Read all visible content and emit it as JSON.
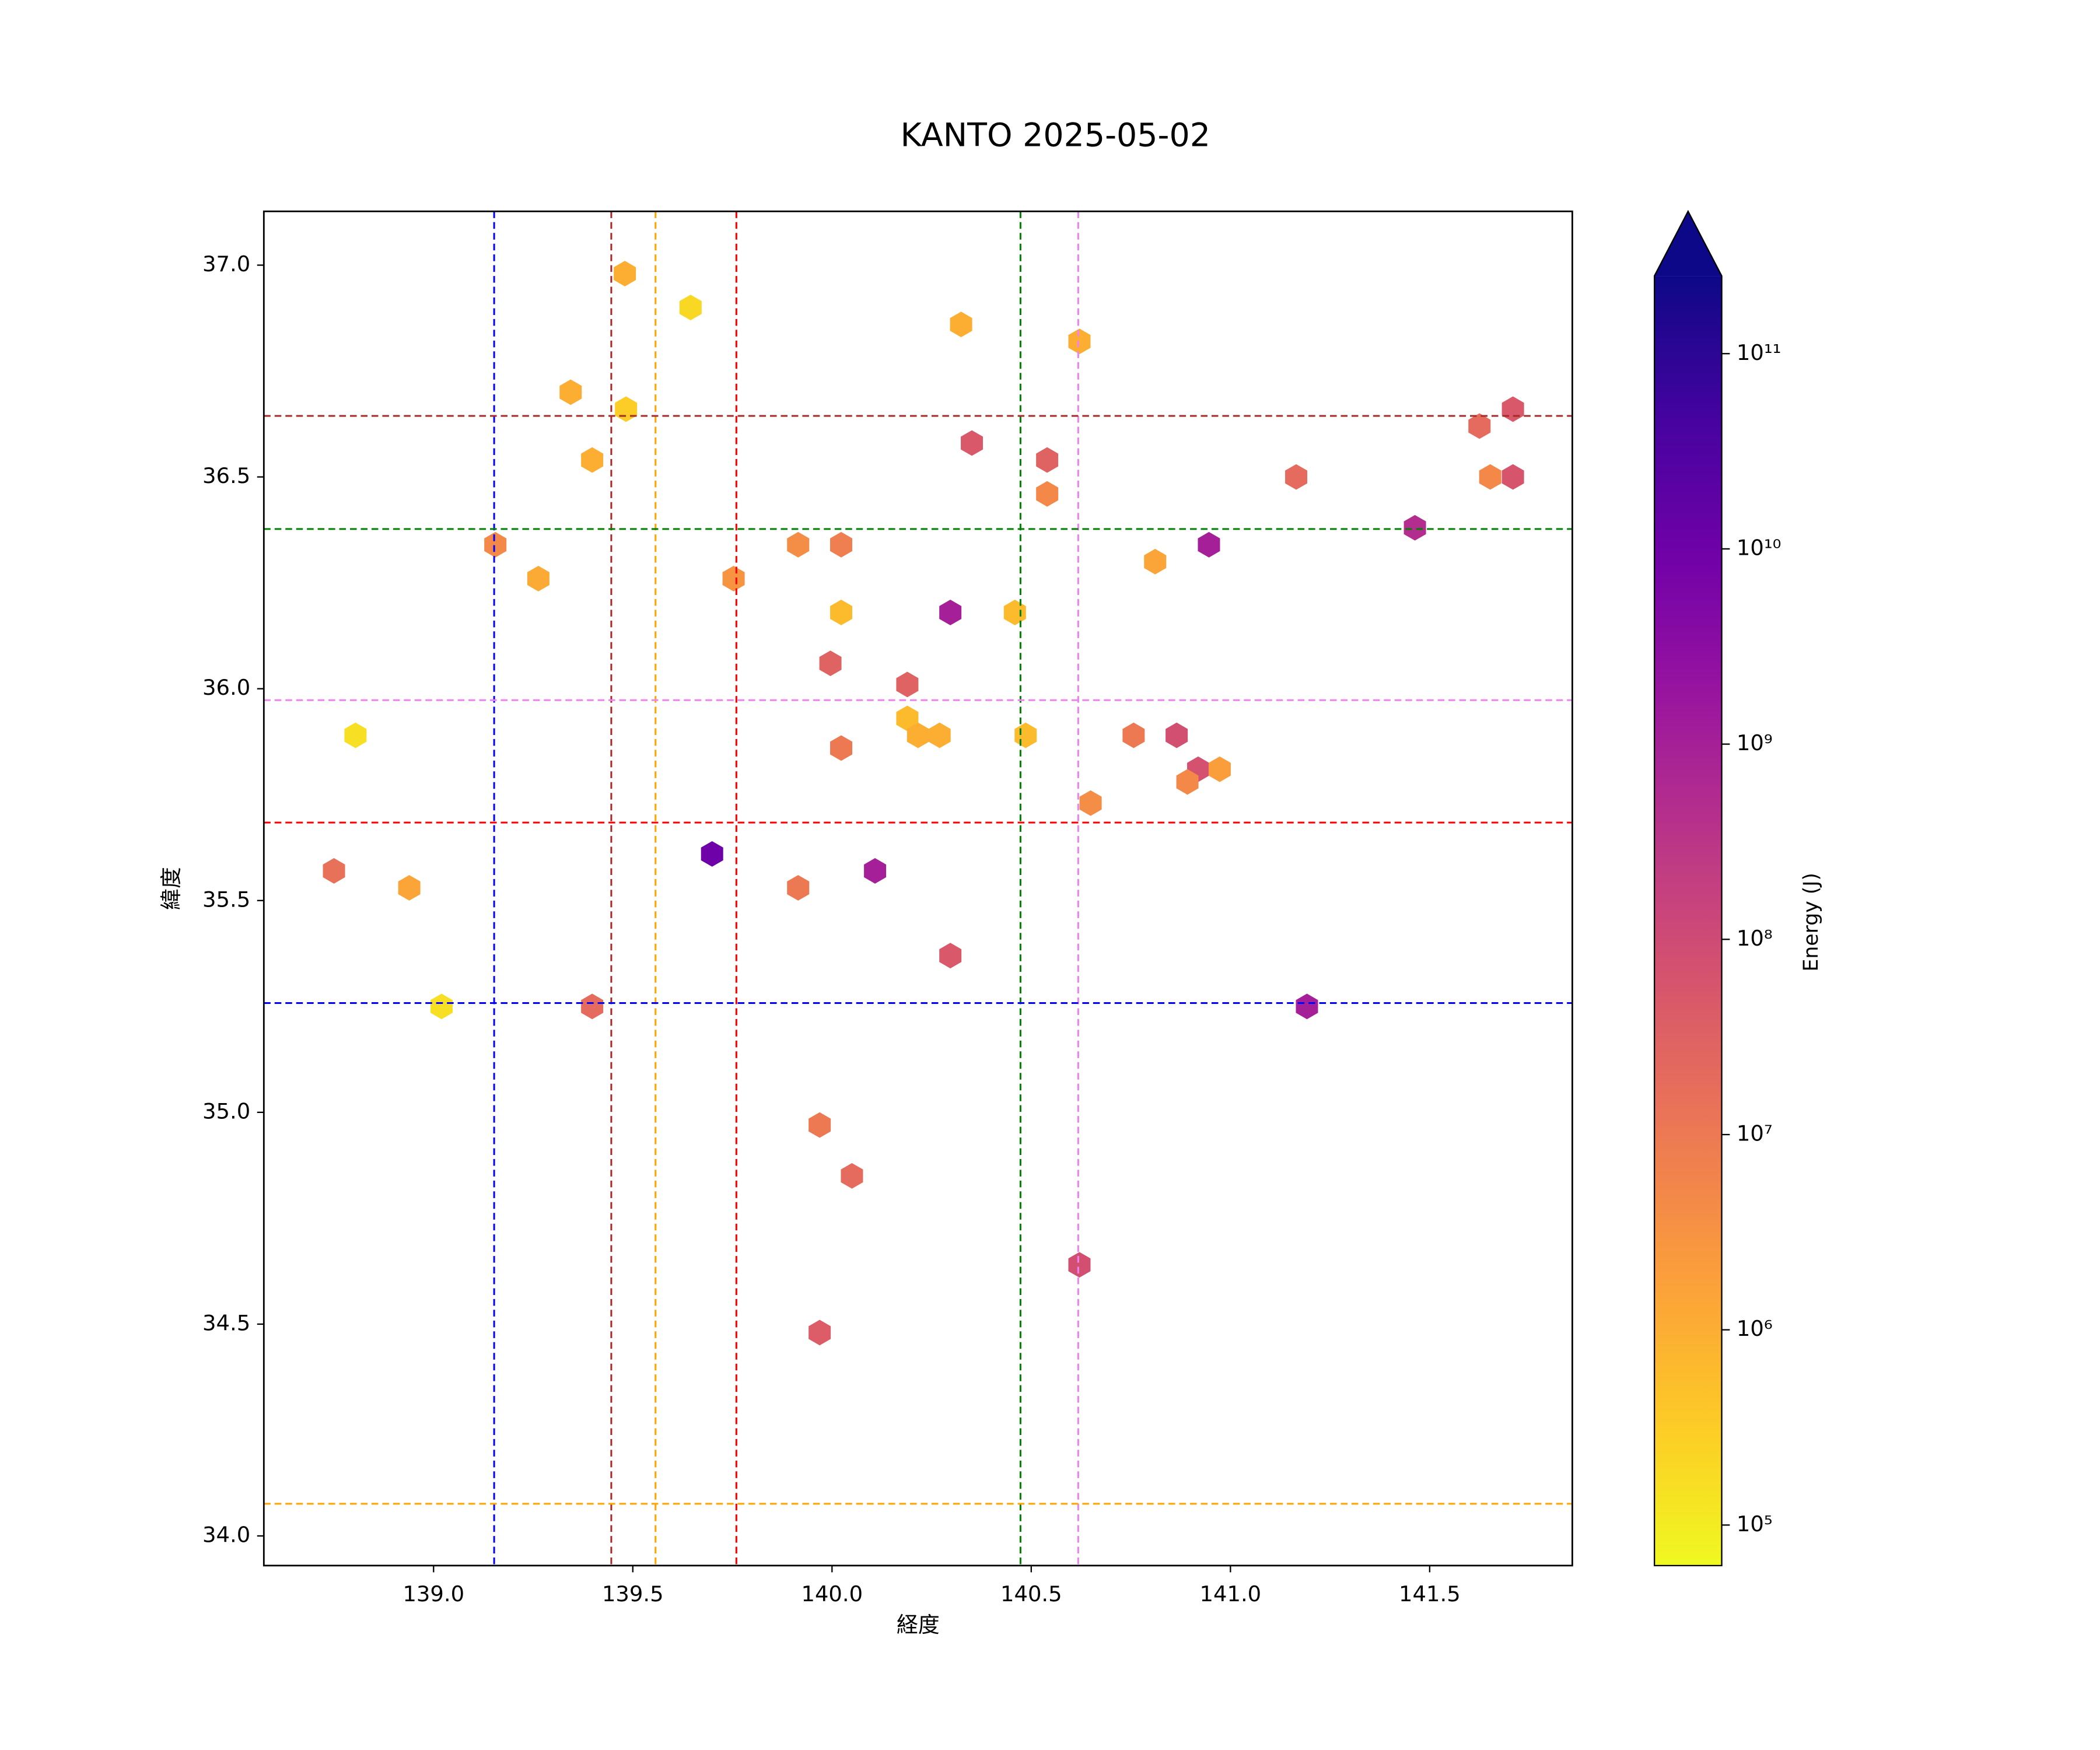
{
  "chart_data": {
    "type": "hexbin",
    "title": "KANTO 2025-05-02",
    "xlabel": "経度",
    "ylabel": "緯度",
    "x": [
      139.48,
      139.645,
      140.324,
      140.621,
      139.344,
      139.483,
      141.709,
      141.625,
      140.351,
      139.398,
      140.54,
      141.165,
      141.652,
      141.709,
      140.54,
      141.463,
      139.155,
      139.915,
      140.023,
      140.946,
      140.811,
      139.263,
      139.753,
      140.023,
      140.297,
      140.459,
      139.996,
      140.189,
      140.189,
      140.216,
      140.27,
      140.486,
      138.804,
      140.757,
      140.865,
      140.023,
      140.919,
      140.973,
      140.892,
      140.649,
      139.699,
      138.75,
      140.108,
      138.939,
      139.915,
      140.297,
      139.02,
      139.398,
      141.192,
      139.969,
      140.05,
      140.621,
      139.969
    ],
    "y": [
      36.98,
      36.9,
      36.86,
      36.82,
      36.7,
      36.66,
      36.66,
      36.62,
      36.58,
      36.54,
      36.54,
      36.5,
      36.5,
      36.5,
      36.46,
      36.38,
      36.34,
      36.34,
      36.34,
      36.34,
      36.3,
      36.26,
      36.26,
      36.18,
      36.18,
      36.18,
      36.06,
      36.01,
      35.93,
      35.89,
      35.89,
      35.89,
      35.89,
      35.89,
      35.89,
      35.86,
      35.81,
      35.81,
      35.78,
      35.73,
      35.61,
      35.57,
      35.57,
      35.53,
      35.53,
      35.37,
      35.25,
      35.25,
      35.25,
      34.97,
      34.85,
      34.64,
      34.48
    ],
    "values": [
      1000000,
      200000,
      1000000,
      1000000,
      1000000,
      300000,
      50000000,
      20000000,
      50000000,
      1000000,
      30000000,
      20000000,
      5000000,
      60000000,
      5000000,
      500000000,
      5000000,
      4000000,
      8000000,
      1000000000,
      1500000,
      1200000,
      3000000,
      600000,
      1000000000,
      600000,
      30000000,
      30000000,
      600000,
      1000000,
      1000000,
      600000,
      150000,
      10000000,
      80000000,
      10000000,
      70000000,
      2000000,
      5000000,
      4000000,
      10000000000,
      15000000,
      1000000000,
      1500000,
      10000000,
      50000000,
      150000,
      20000000,
      1000000000,
      10000000,
      20000000,
      80000000,
      40000000
    ],
    "vlines": [
      {
        "x": 139.152,
        "color": "#0000ff"
      },
      {
        "x": 139.446,
        "color": "#a52a2a"
      },
      {
        "x": 139.557,
        "color": "#ffa500"
      },
      {
        "x": 140.473,
        "color": "#008000"
      },
      {
        "x": 139.76,
        "color": "#ff0000"
      },
      {
        "x": 140.618,
        "color": "#ee82ee"
      }
    ],
    "hlines": [
      {
        "y": 36.644,
        "color": "#a52a2a"
      },
      {
        "y": 36.377,
        "color": "#008000"
      },
      {
        "y": 35.973,
        "color": "#ee82ee"
      },
      {
        "y": 35.684,
        "color": "#ff0000"
      },
      {
        "y": 35.258,
        "color": "#0000ff"
      },
      {
        "y": 34.076,
        "color": "#ffa500"
      }
    ],
    "xlim": [
      138.574,
      141.858
    ],
    "xticks": [
      {
        "value": 139,
        "label": "139.0"
      },
      {
        "value": 139.5,
        "label": "139.5"
      },
      {
        "value": 140,
        "label": "140.0"
      },
      {
        "value": 140.5,
        "label": "140.5"
      },
      {
        "value": 141,
        "label": "141.0"
      },
      {
        "value": 141.5,
        "label": "141.5"
      }
    ],
    "ylim": [
      33.93,
      37.127
    ],
    "yticks": [
      {
        "value": 34,
        "label": "34.0"
      },
      34.5,
      {
        "value": 35,
        "label": "35.0"
      },
      35.5,
      {
        "value": 36,
        "label": "36.0"
      },
      36.5,
      {
        "value": 37,
        "label": "37.0"
      }
    ],
    "colorbar": {
      "label": "Energy (J)",
      "scale": "log",
      "cmap": "plasma_r",
      "lim": [
        62000,
        250000000000
      ],
      "ticks": [
        {
          "value": 100000,
          "label": "10⁵"
        },
        {
          "value": 1000000,
          "label": "10⁶"
        },
        {
          "value": 10000000,
          "label": "10⁷"
        },
        {
          "value": 100000000,
          "label": "10⁸"
        },
        {
          "value": 1000000000,
          "label": "10⁹"
        },
        {
          "value": 10000000000,
          "label": "10¹⁰"
        },
        {
          "value": 100000000000,
          "label": "10¹¹"
        }
      ]
    }
  }
}
